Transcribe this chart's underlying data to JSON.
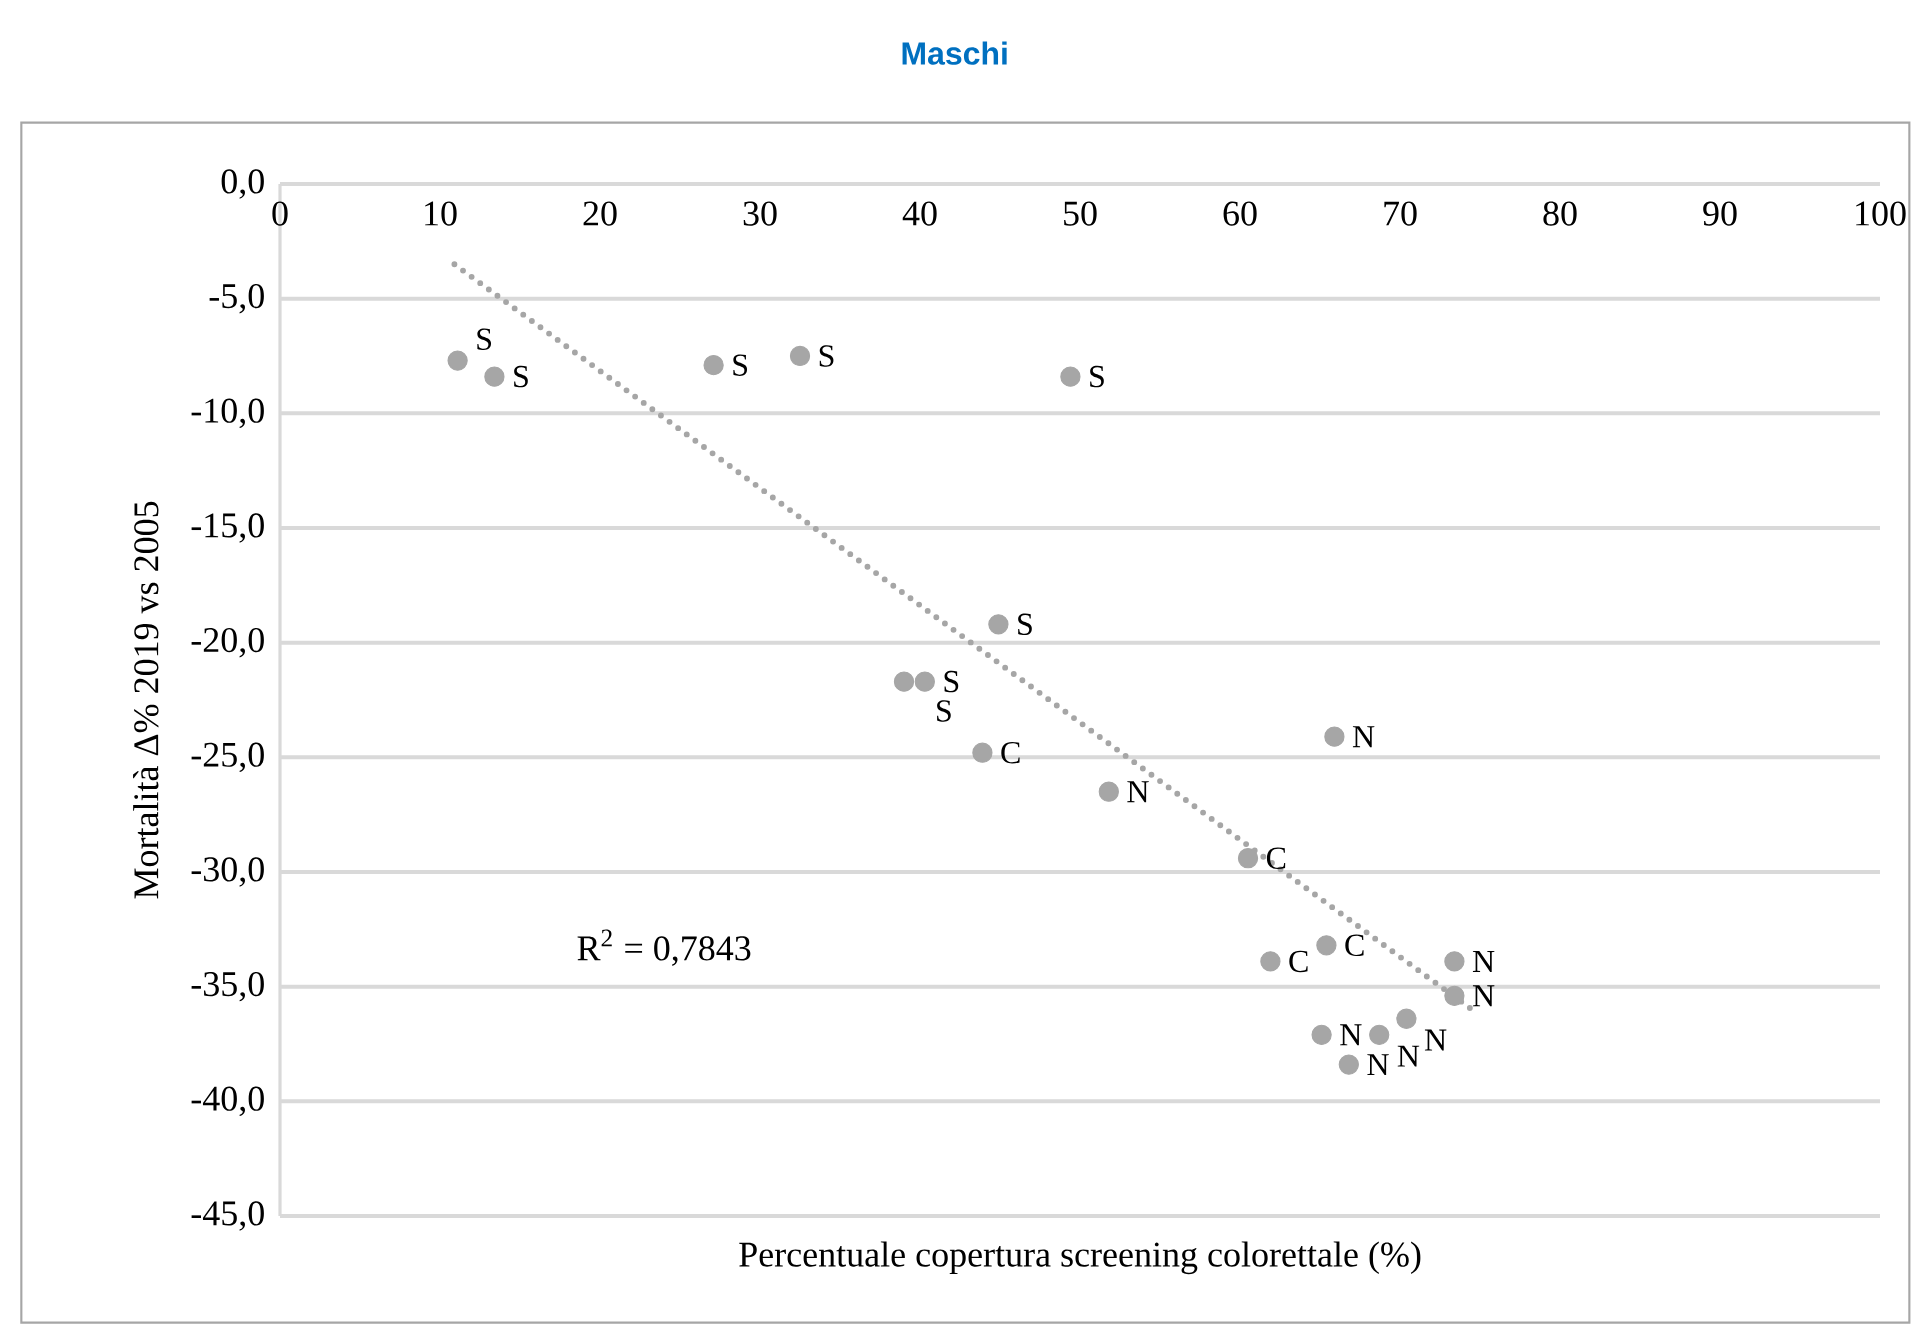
{
  "chart_data": {
    "type": "scatter",
    "title": "Maschi",
    "xlabel": "Percentuale copertura screening colorettale (%)",
    "ylabel": "Mortalità Δ% 2019 vs 2005",
    "xlim": [
      0,
      100
    ],
    "ylim": [
      -45,
      0
    ],
    "xticks": [
      0,
      10,
      20,
      30,
      40,
      50,
      60,
      70,
      80,
      90,
      100
    ],
    "yticks": [
      {
        "value": 0,
        "label": "0,0"
      },
      {
        "value": -5,
        "label": "-5,0"
      },
      {
        "value": -10,
        "label": "-10,0"
      },
      {
        "value": -15,
        "label": "-15,0"
      },
      {
        "value": -20,
        "label": "-20,0"
      },
      {
        "value": -25,
        "label": "-25,0"
      },
      {
        "value": -30,
        "label": "-30,0"
      },
      {
        "value": -35,
        "label": "-35,0"
      },
      {
        "value": -40,
        "label": "-40,0"
      },
      {
        "value": -45,
        "label": "-45,0"
      }
    ],
    "grid": "y",
    "marker": "circle",
    "series": [
      {
        "type": "scatter",
        "color": "#a6a6a6",
        "x": [
          11.1,
          13.4,
          27.1,
          32.5,
          49.4,
          44.9,
          39.0,
          40.3,
          43.9,
          51.8,
          65.9,
          60.5,
          61.9,
          65.4,
          73.4,
          73.4,
          70.4,
          68.7,
          65.1,
          66.8
        ],
        "values": [
          -7.7,
          -8.4,
          -7.9,
          -7.5,
          -8.4,
          -19.2,
          -21.7,
          -21.7,
          -24.8,
          -26.5,
          -24.1,
          -29.4,
          -33.9,
          -33.2,
          -33.9,
          -35.4,
          -36.4,
          -37.1,
          -37.1,
          -38.4
        ]
      },
      {
        "type": "line",
        "color": "#a6a6a6",
        "line_style": "dotted",
        "marker": "none",
        "x": [
          10.9,
          74.5
        ],
        "values": [
          -3.5,
          -36.0
        ]
      }
    ],
    "annotations": [
      "R$^{2}$ = 0,7843",
      {
        "text": "S",
        "x": 11.1,
        "y": -7.7
      },
      {
        "text": "S",
        "x": 13.4,
        "y": -8.4
      },
      {
        "text": "S",
        "x": 27.1,
        "y": -7.9
      },
      {
        "text": "S",
        "x": 32.5,
        "y": -7.5
      },
      {
        "text": "S",
        "x": 49.4,
        "y": -8.4
      },
      {
        "text": "S",
        "x": 44.9,
        "y": -19.2
      },
      {
        "text": "S",
        "x": 39.0,
        "y": -21.7
      },
      {
        "text": "S",
        "x": 40.3,
        "y": -21.7
      },
      {
        "text": "C",
        "x": 43.9,
        "y": -24.8
      },
      {
        "text": "N",
        "x": 51.8,
        "y": -26.5
      },
      {
        "text": "N",
        "x": 65.9,
        "y": -24.1
      },
      {
        "text": "C",
        "x": 60.5,
        "y": -29.4
      },
      {
        "text": "C",
        "x": 61.9,
        "y": -33.9
      },
      {
        "text": "C",
        "x": 65.4,
        "y": -33.2
      },
      {
        "text": "N",
        "x": 73.4,
        "y": -33.9
      },
      {
        "text": "N",
        "x": 73.4,
        "y": -35.4
      },
      {
        "text": "N",
        "x": 70.4,
        "y": -36.4
      },
      {
        "text": "N",
        "x": 68.7,
        "y": -37.1
      },
      {
        "text": "N",
        "x": 65.1,
        "y": -37.1
      },
      {
        "text": "N",
        "x": 66.8,
        "y": -38.4
      }
    ]
  }
}
